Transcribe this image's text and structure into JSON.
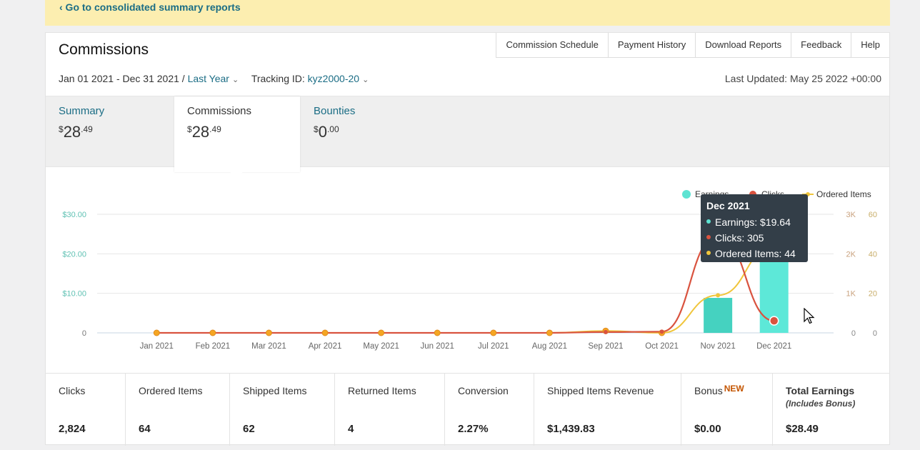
{
  "banner": {
    "link_text": "‹ Go to consolidated summary reports"
  },
  "header": {
    "title": "Commissions",
    "links": [
      "Commission Schedule",
      "Payment History",
      "Download Reports",
      "Feedback",
      "Help"
    ]
  },
  "filters": {
    "date_range": "Jan 01 2021 - Dec 31 2021 /",
    "period": "Last Year",
    "tracking_label": "Tracking ID:",
    "tracking_id": "kyz2000-20",
    "last_updated": "Last Updated: May 25 2022 +00:00"
  },
  "tabs": [
    {
      "label": "Summary",
      "currency": "$",
      "whole": "28",
      "cents": ".49"
    },
    {
      "label": "Commissions",
      "currency": "$",
      "whole": "28",
      "cents": ".49"
    },
    {
      "label": "Bounties",
      "currency": "$",
      "whole": "0",
      "cents": ".00"
    }
  ],
  "chart_data": {
    "type": "bar+line",
    "categories": [
      "Jan 2021",
      "Feb 2021",
      "Mar 2021",
      "Apr 2021",
      "May 2021",
      "Jun 2021",
      "Jul 2021",
      "Aug 2021",
      "Sep 2021",
      "Oct 2021",
      "Nov 2021",
      "Dec 2021"
    ],
    "series": [
      {
        "name": "Earnings",
        "type": "bar",
        "axis": "left",
        "values": [
          0,
          0,
          0,
          0,
          0,
          0,
          0,
          0,
          0,
          0,
          8.85,
          19.64
        ]
      },
      {
        "name": "Clicks",
        "type": "line",
        "axis": "right1",
        "values": [
          0,
          0,
          0,
          0,
          0,
          0,
          0,
          0,
          20,
          30,
          2469,
          305
        ]
      },
      {
        "name": "Ordered Items",
        "type": "line",
        "axis": "right2",
        "values": [
          0,
          0,
          0,
          0,
          0,
          0,
          0,
          0,
          1,
          0,
          19,
          44
        ]
      }
    ],
    "left_axis": {
      "ticks": [
        "0",
        "$10.00",
        "$20.00",
        "$30.00"
      ],
      "range": [
        0,
        30
      ]
    },
    "right_axis_1": {
      "ticks": [
        "0",
        "1K",
        "2K",
        "3K"
      ],
      "range": [
        0,
        3000
      ]
    },
    "right_axis_2": {
      "ticks": [
        "0",
        "20",
        "40",
        "60"
      ],
      "range": [
        0,
        60
      ]
    },
    "grid": true,
    "legend_position": "top-right",
    "colors": {
      "earnings": "#5de3d2",
      "clicks": "#d9533f",
      "ordered_items": "#f0c53b",
      "markers": "#f5a623"
    }
  },
  "tooltip": {
    "title": "Dec 2021",
    "rows": [
      "Earnings: $19.64",
      "Clicks: 305",
      "Ordered Items: 44"
    ]
  },
  "stats": [
    {
      "label": "Clicks",
      "value": "2,824"
    },
    {
      "label": "Ordered Items",
      "value": "64"
    },
    {
      "label": "Shipped Items",
      "value": "62"
    },
    {
      "label": "Returned Items",
      "value": "4"
    },
    {
      "label": "Conversion",
      "value": "2.27%"
    },
    {
      "label": "Shipped Items Revenue",
      "value": "$1,439.83"
    },
    {
      "label": "Bonus",
      "badge": "NEW",
      "value": "$0.00"
    },
    {
      "label": "Total Earnings",
      "sub": "(Includes Bonus)",
      "value": "$28.49"
    }
  ]
}
